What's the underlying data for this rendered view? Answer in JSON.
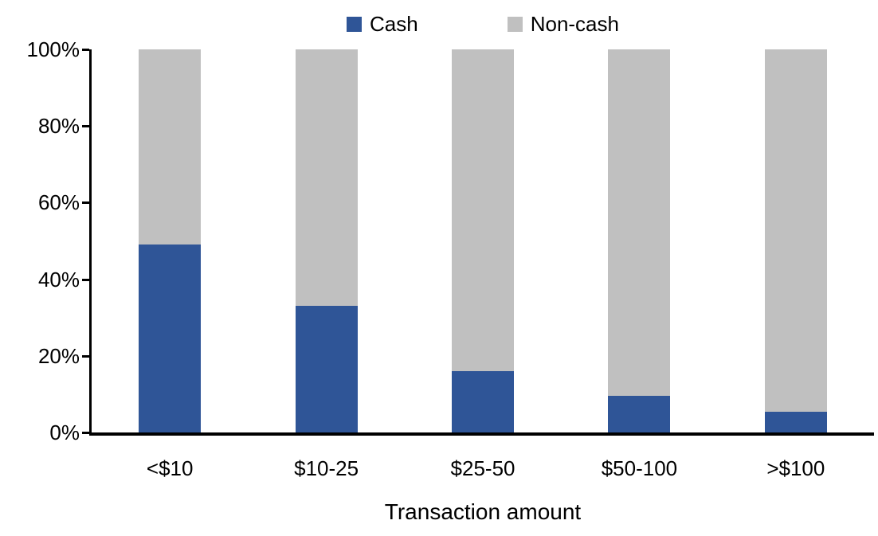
{
  "chart_data": {
    "type": "bar",
    "stacked": true,
    "percent_stacked": true,
    "title": "",
    "xlabel": "Transaction amount",
    "ylabel": "",
    "categories": [
      "<$10",
      "$10-25",
      "$25-50",
      "$50-100",
      ">$100"
    ],
    "series": [
      {
        "name": "Cash",
        "color": "#2F5597",
        "values": [
          49,
          33,
          16,
          9.5,
          5.5
        ]
      },
      {
        "name": "Non-cash",
        "color": "#C0C0C0",
        "values": [
          51,
          67,
          84,
          90.5,
          94.5
        ]
      }
    ],
    "ylim": [
      0,
      100
    ],
    "yticks": [
      "0%",
      "20%",
      "40%",
      "60%",
      "80%",
      "100%"
    ],
    "legend_position": "top-center",
    "grid": false,
    "axis_color": "#000000"
  }
}
